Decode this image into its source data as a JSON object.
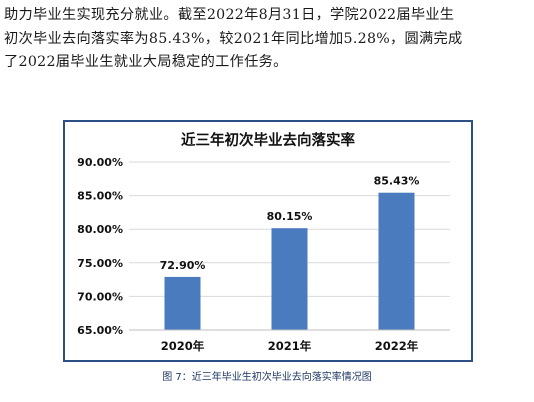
{
  "paragraph": {
    "lines": [
      "助力毕业生实现充分就业。截至2022年8月31日，学院2022届毕业生",
      "初次毕业去向落实率为85.43%，较2021年同比增加5.28%，圆满完成",
      "了2022届毕业生就业大局稳定的工作任务。"
    ]
  },
  "chart_data": {
    "type": "bar",
    "title": "近三年初次毕业去向落实率",
    "categories": [
      "2020年",
      "2021年",
      "2022年"
    ],
    "values": [
      72.9,
      80.15,
      85.43
    ],
    "data_labels": [
      "72.90%",
      "80.15%",
      "85.43%"
    ],
    "yticks": [
      "65.00%",
      "70.00%",
      "75.00%",
      "80.00%",
      "85.00%",
      "90.00%"
    ],
    "ylim": [
      65,
      90
    ],
    "grid": true,
    "bar_color": "#4a7bbf"
  },
  "caption": "图 7：近三年毕业生初次毕业去向落实率情况图"
}
